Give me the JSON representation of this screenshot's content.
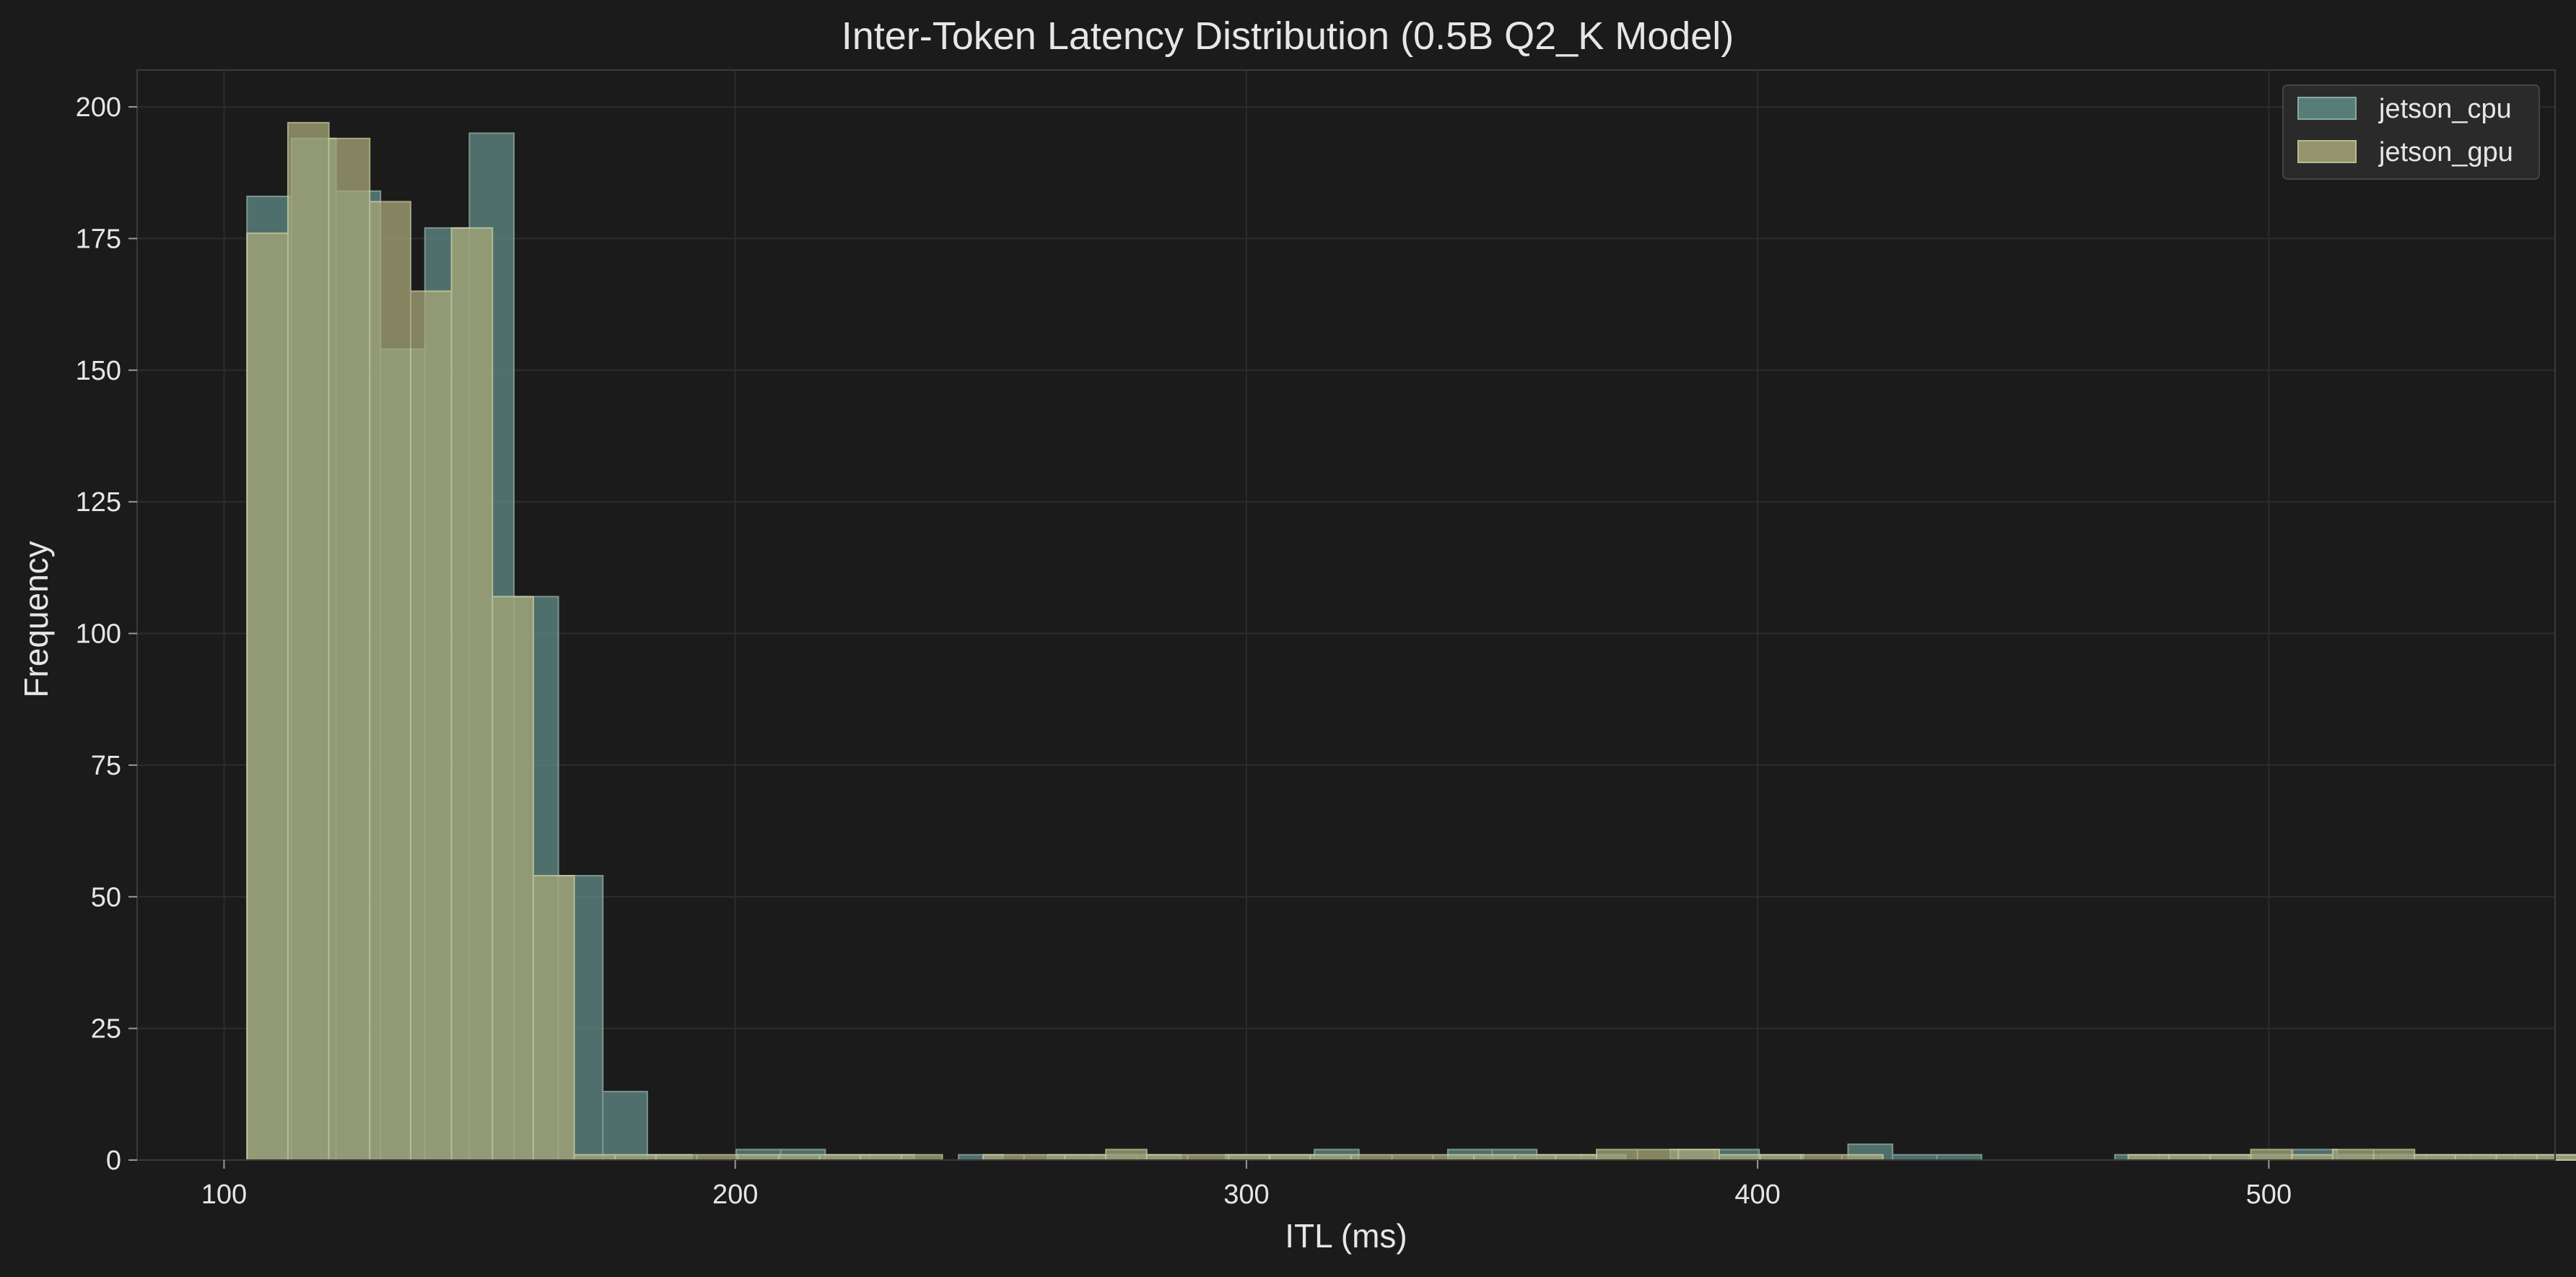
{
  "chart_data": {
    "type": "bar",
    "title": "Inter-Token Latency Distribution (0.5B Q2_K Model)",
    "xlabel": "ITL (ms)",
    "ylabel": "Frequency",
    "xlim": [
      83,
      556
    ],
    "ylim": [
      0,
      207
    ],
    "xticks": [
      100,
      200,
      300,
      400,
      500
    ],
    "yticks": [
      0,
      25,
      50,
      75,
      100,
      125,
      150,
      175,
      200
    ],
    "grid": true,
    "legend_position": "top-right",
    "series": [
      {
        "name": "jetson_cpu",
        "color": "#5f8c86",
        "bin_start": 104.5,
        "bin_width": 8.7,
        "counts": [
          183,
          194,
          184,
          154,
          177,
          195,
          107,
          54,
          13,
          1,
          0,
          2,
          2,
          1,
          1,
          0,
          1,
          0,
          1,
          1,
          1,
          0,
          1,
          1,
          2,
          0,
          0,
          2,
          2,
          1,
          1,
          0,
          2,
          2,
          1,
          0,
          3,
          1,
          1,
          0,
          0,
          0,
          1,
          1,
          1,
          1,
          2,
          1,
          1,
          1,
          1,
          1,
          1,
          1,
          1,
          0,
          0,
          0,
          0,
          0,
          1
        ]
      },
      {
        "name": "jetson_gpu",
        "color": "#a8a879",
        "bin_start": 104.5,
        "bin_width": 8.0,
        "counts": [
          176,
          197,
          194,
          182,
          165,
          177,
          107,
          54,
          1,
          1,
          1,
          1,
          1,
          1,
          1,
          1,
          1,
          0,
          1,
          1,
          1,
          2,
          1,
          1,
          1,
          1,
          1,
          1,
          1,
          1,
          1,
          1,
          1,
          2,
          2,
          2,
          1,
          1,
          1,
          1,
          0,
          0,
          0,
          0,
          0,
          0,
          1,
          1,
          1,
          2,
          1,
          2,
          2,
          1,
          1,
          1,
          1,
          1,
          1,
          1,
          1,
          1,
          2
        ]
      }
    ]
  }
}
